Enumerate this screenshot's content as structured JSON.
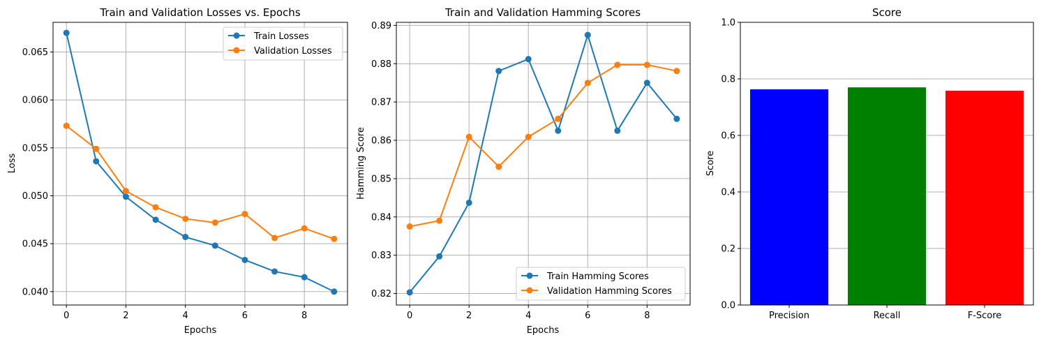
{
  "chart_data": [
    {
      "type": "line",
      "title": "Train and Validation Losses vs. Epochs",
      "xlabel": "Epochs",
      "ylabel": "Loss",
      "xlim": [
        -0.45,
        9.45
      ],
      "ylim": [
        0.0386,
        0.0681
      ],
      "xticks": [
        0,
        2,
        4,
        6,
        8
      ],
      "xtick_labels": [
        "0",
        "2",
        "4",
        "6",
        "8"
      ],
      "yticks": [
        0.04,
        0.045,
        0.05,
        0.055,
        0.06,
        0.065
      ],
      "ytick_labels": [
        "0.040",
        "0.045",
        "0.050",
        "0.055",
        "0.060",
        "0.065"
      ],
      "grid": true,
      "legend_position": "top-right",
      "x": [
        0,
        1,
        2,
        3,
        4,
        5,
        6,
        7,
        8,
        9
      ],
      "series": [
        {
          "name": "Train Losses",
          "color": "#1f77b4",
          "values": [
            0.067,
            0.0536,
            0.0499,
            0.0475,
            0.0457,
            0.0448,
            0.0433,
            0.0421,
            0.0415,
            0.04
          ]
        },
        {
          "name": "Validation Losses",
          "color": "#ff7f0e",
          "values": [
            0.0573,
            0.0549,
            0.0505,
            0.0488,
            0.0476,
            0.0472,
            0.0481,
            0.0456,
            0.0466,
            0.0455
          ]
        }
      ]
    },
    {
      "type": "line",
      "title": "Train and Validation Hamming Scores",
      "xlabel": "Epochs",
      "ylabel": "Hamming Score",
      "xlim": [
        -0.45,
        9.45
      ],
      "ylim": [
        0.817,
        0.8908
      ],
      "xticks": [
        0,
        2,
        4,
        6,
        8
      ],
      "xtick_labels": [
        "0",
        "2",
        "4",
        "6",
        "8"
      ],
      "yticks": [
        0.82,
        0.83,
        0.84,
        0.85,
        0.86,
        0.87,
        0.88,
        0.89
      ],
      "ytick_labels": [
        "0.82",
        "0.83",
        "0.84",
        "0.85",
        "0.86",
        "0.87",
        "0.88",
        "0.89"
      ],
      "grid": true,
      "legend_position": "bottom-right",
      "x": [
        0,
        1,
        2,
        3,
        4,
        5,
        6,
        7,
        8,
        9
      ],
      "series": [
        {
          "name": "Train Hamming Scores",
          "color": "#1f77b4",
          "values": [
            0.8203,
            0.8297,
            0.8437,
            0.8781,
            0.8812,
            0.8625,
            0.8875,
            0.8625,
            0.875,
            0.8656
          ]
        },
        {
          "name": "Validation Hamming Scores",
          "color": "#ff7f0e",
          "values": [
            0.8375,
            0.839,
            0.8609,
            0.8531,
            0.8609,
            0.8656,
            0.875,
            0.8797,
            0.8797,
            0.8781
          ]
        }
      ]
    },
    {
      "type": "bar",
      "title": "Score",
      "xlabel": "",
      "ylabel": "Score",
      "ylim": [
        0,
        1.0
      ],
      "yticks": [
        0.0,
        0.2,
        0.4,
        0.6,
        0.8,
        1.0
      ],
      "ytick_labels": [
        "0.0",
        "0.2",
        "0.4",
        "0.6",
        "0.8",
        "1.0"
      ],
      "grid": true,
      "grid_axis": "y",
      "categories": [
        "Precision",
        "Recall",
        "F-Score"
      ],
      "values": [
        0.763,
        0.77,
        0.758
      ],
      "colors": [
        "#0000ff",
        "#008000",
        "#ff0000"
      ]
    }
  ]
}
